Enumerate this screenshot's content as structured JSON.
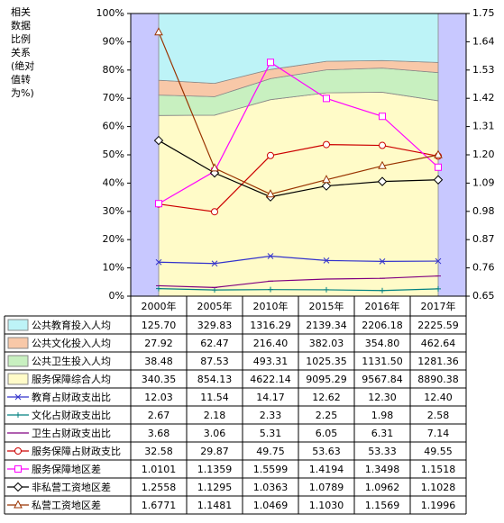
{
  "chart_data": {
    "type": "combo",
    "y_label": [
      "相关",
      "数据",
      "比例",
      "关系",
      "(绝对",
      "值转",
      "为%)"
    ],
    "categories": [
      "2000年",
      "2005年",
      "2010年",
      "2015年",
      "2016年",
      "2017年"
    ],
    "ylim": [
      0,
      100
    ],
    "yticks": [
      {
        "value": 0,
        "label": "0%"
      },
      {
        "value": 10,
        "label": "10%"
      },
      {
        "value": 20,
        "label": "20%"
      },
      {
        "value": 30,
        "label": "30%"
      },
      {
        "value": 40,
        "label": "40%"
      },
      {
        "value": 50,
        "label": "50%"
      },
      {
        "value": 60,
        "label": "60%"
      },
      {
        "value": 70,
        "label": "70%"
      },
      {
        "value": 80,
        "label": "80%"
      },
      {
        "value": 90,
        "label": "90%"
      },
      {
        "value": 100,
        "label": "100%"
      }
    ],
    "y2lim": [
      0.65,
      1.75
    ],
    "y2ticks": [
      0.65,
      0.76,
      0.87,
      0.98,
      1.09,
      {
        "value": 1.2,
        "label": "1.20"
      },
      1.31,
      1.42,
      1.53,
      1.64,
      1.75
    ],
    "stacking": "percent",
    "background_color": "#c8c8ff",
    "series": [
      {
        "name": "公共教育投入人均",
        "type": "area",
        "color": "#bdf3f7",
        "values": [
          125.7,
          329.83,
          1316.29,
          2139.34,
          2206.18,
          2225.59
        ],
        "value_labels": [
          "125.70",
          "329.83",
          "1316.29",
          "2139.34",
          "2206.18",
          "2225.59"
        ]
      },
      {
        "name": "公共文化投入人均",
        "type": "area",
        "color": "#f8c8a8",
        "values": [
          27.92,
          62.47,
          216.4,
          382.03,
          354.8,
          462.64
        ],
        "value_labels": [
          "27.92",
          "62.47",
          "216.40",
          "382.03",
          "354.80",
          "462.64"
        ]
      },
      {
        "name": "公共卫生投入人均",
        "type": "area",
        "color": "#c8f0c0",
        "values": [
          38.48,
          87.53,
          493.31,
          1025.35,
          1131.5,
          1281.36
        ],
        "value_labels": [
          "38.48",
          "87.53",
          "493.31",
          "1025.35",
          "1131.50",
          "1281.36"
        ]
      },
      {
        "name": "服务保障综合人均",
        "type": "area",
        "color": "#fffbc8",
        "values": [
          340.35,
          854.13,
          4622.14,
          9095.29,
          9567.84,
          8890.38
        ],
        "value_labels": [
          "340.35",
          "854.13",
          "4622.14",
          "9095.29",
          "9567.84",
          "8890.38"
        ]
      },
      {
        "name": "教育占财政支出比",
        "type": "line",
        "marker": "x",
        "color": "#3333cc",
        "values": [
          12.03,
          11.54,
          14.17,
          12.62,
          12.3,
          12.4
        ],
        "value_labels": [
          "12.03",
          "11.54",
          "14.17",
          "12.62",
          "12.30",
          "12.40"
        ]
      },
      {
        "name": "文化占财政支出比",
        "type": "line",
        "marker": "plus",
        "color": "#008080",
        "values": [
          2.67,
          2.18,
          2.33,
          2.25,
          1.98,
          2.58
        ],
        "value_labels": [
          "2.67",
          "2.18",
          "2.33",
          "2.25",
          "1.98",
          "2.58"
        ]
      },
      {
        "name": "卫生占财政支出比",
        "type": "line",
        "marker": "dash",
        "color": "#800080",
        "values": [
          3.68,
          3.06,
          5.31,
          6.05,
          6.31,
          7.14
        ],
        "value_labels": [
          "3.68",
          "3.06",
          "5.31",
          "6.05",
          "6.31",
          "7.14"
        ]
      },
      {
        "name": "服务保障占财政支比",
        "type": "line",
        "marker": "circle",
        "color": "#cc0000",
        "values": [
          32.58,
          29.87,
          49.75,
          53.63,
          53.33,
          49.55
        ],
        "value_labels": [
          "32.58",
          "29.87",
          "49.75",
          "53.63",
          "53.33",
          "49.55"
        ]
      },
      {
        "name": "服务保障地区差",
        "type": "line",
        "marker": "square",
        "axis": "y2",
        "color": "#ff00ff",
        "values": [
          1.0101,
          1.1359,
          1.5599,
          1.4194,
          1.3498,
          1.1518
        ],
        "value_labels": [
          "1.0101",
          "1.1359",
          "1.5599",
          "1.4194",
          "1.3498",
          "1.1518"
        ]
      },
      {
        "name": "非私营工资地区差",
        "type": "line",
        "marker": "diamond",
        "axis": "y2",
        "color": "#000000",
        "values": [
          1.2558,
          1.1295,
          1.0363,
          1.0789,
          1.0962,
          1.1028
        ],
        "value_labels": [
          "1.2558",
          "1.1295",
          "1.0363",
          "1.0789",
          "1.0962",
          "1.1028"
        ]
      },
      {
        "name": "私营工资地区差",
        "type": "line",
        "marker": "triangle",
        "axis": "y2",
        "color": "#993300",
        "values": [
          1.6771,
          1.1481,
          1.0469,
          1.103,
          1.1569,
          1.1996
        ],
        "value_labels": [
          "1.6771",
          "1.1481",
          "1.0469",
          "1.1030",
          "1.1569",
          "1.1996"
        ]
      }
    ]
  }
}
